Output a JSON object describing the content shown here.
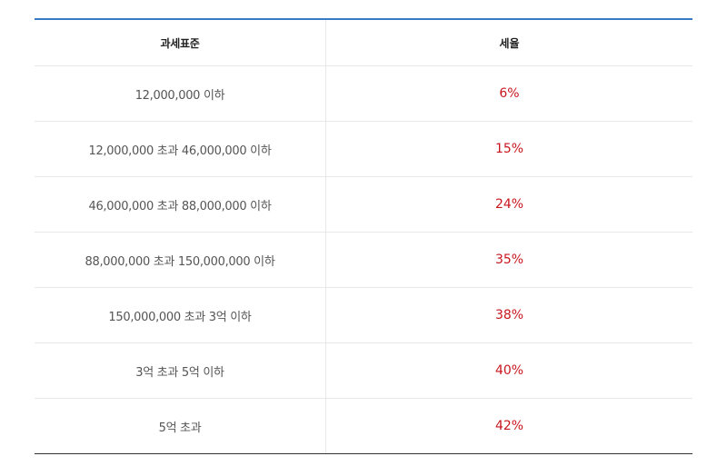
{
  "table": {
    "headers": {
      "base": "과세표준",
      "rate": "세율"
    },
    "rows": [
      {
        "base": "12,000,000 이하",
        "rate": "6%"
      },
      {
        "base": "12,000,000 초과 46,000,000 이하",
        "rate": "15%"
      },
      {
        "base": "46,000,000 초과 88,000,000 이하",
        "rate": "24%"
      },
      {
        "base": "88,000,000 초과 150,000,000 이하",
        "rate": "35%"
      },
      {
        "base": "150,000,000 초과 3억 이하",
        "rate": "38%"
      },
      {
        "base": "3억 초과 5억 이하",
        "rate": "40%"
      },
      {
        "base": "5억 초과",
        "rate": "42%"
      }
    ]
  },
  "colors": {
    "header_rule": "#3a7bc8",
    "rate_text": "#c8161d"
  }
}
